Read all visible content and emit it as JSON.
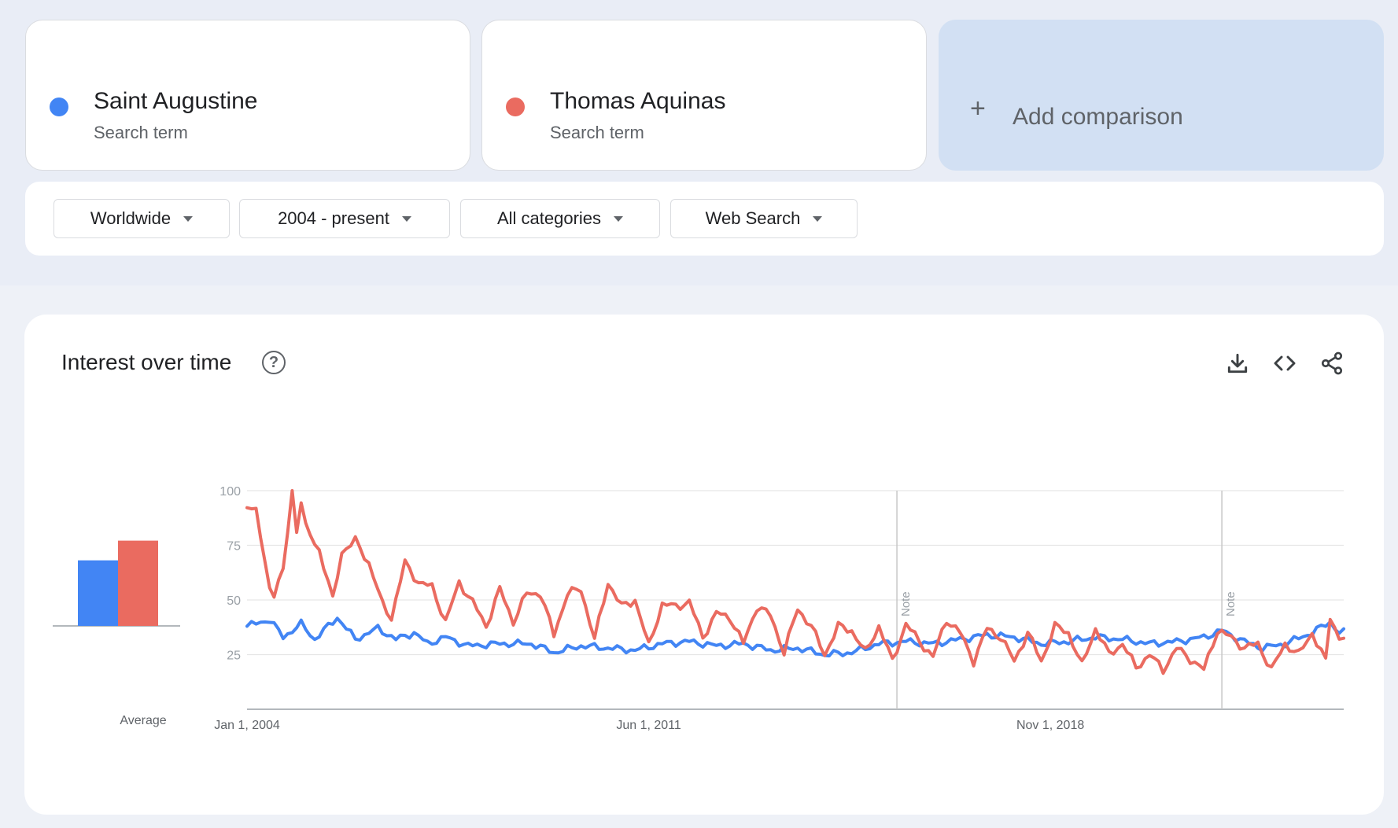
{
  "terms": [
    {
      "name": "Saint Augustine",
      "subtitle": "Search term",
      "color": "#4285f4"
    },
    {
      "name": "Thomas Aquinas",
      "subtitle": "Search term",
      "color": "#ea6b60"
    }
  ],
  "add_comparison": {
    "plus": "+",
    "label": "Add comparison"
  },
  "filters": {
    "region": "Worldwide",
    "time_range": "2004 - present",
    "category": "All categories",
    "search_type": "Web Search"
  },
  "chart_panel": {
    "title": "Interest over time",
    "help_icon": "?",
    "icons": [
      "download-icon",
      "embed-code-icon",
      "share-icon"
    ],
    "average_label": "Average"
  },
  "chart_data": {
    "type": "line",
    "title": "Interest over time",
    "ylim": [
      0,
      100
    ],
    "y_ticks": [
      25,
      50,
      75,
      100
    ],
    "x_ticks": [
      "Jan 1, 2004",
      "Jun 1, 2011",
      "Nov 1, 2018"
    ],
    "x_range": [
      "2004-01",
      "2024-03"
    ],
    "grid": true,
    "notes": [
      {
        "date": "2016-01",
        "label": "Note"
      },
      {
        "date": "2022-01",
        "label": "Note"
      }
    ],
    "average": [
      {
        "name": "Saint Augustine",
        "value": 30
      },
      {
        "name": "Thomas Aquinas",
        "value": 39
      }
    ],
    "series": [
      {
        "name": "Saint Augustine",
        "color": "#4285f4",
        "anchors": [
          [
            "2004-01",
            38
          ],
          [
            "2004-06",
            41
          ],
          [
            "2004-09",
            33
          ],
          [
            "2005-01",
            39
          ],
          [
            "2005-04",
            32
          ],
          [
            "2005-09",
            42
          ],
          [
            "2006-01",
            32
          ],
          [
            "2006-06",
            37
          ],
          [
            "2006-10",
            32
          ],
          [
            "2007-02",
            35
          ],
          [
            "2007-05",
            30
          ],
          [
            "2007-09",
            33
          ],
          [
            "2008-02",
            29
          ],
          [
            "2008-09",
            30
          ],
          [
            "2009-04",
            30
          ],
          [
            "2009-09",
            26
          ],
          [
            "2010-03",
            29
          ],
          [
            "2010-09",
            28
          ],
          [
            "2011-03",
            27
          ],
          [
            "2011-09",
            30
          ],
          [
            "2012-03",
            31
          ],
          [
            "2012-09",
            29
          ],
          [
            "2013-03",
            30
          ],
          [
            "2013-09",
            27
          ],
          [
            "2014-03",
            28
          ],
          [
            "2014-09",
            25
          ],
          [
            "2015-03",
            26
          ],
          [
            "2015-09",
            30
          ],
          [
            "2016-03",
            31
          ],
          [
            "2016-09",
            30
          ],
          [
            "2017-03",
            32
          ],
          [
            "2017-09",
            34
          ],
          [
            "2018-03",
            33
          ],
          [
            "2018-09",
            30
          ],
          [
            "2019-03",
            31
          ],
          [
            "2019-09",
            33
          ],
          [
            "2020-03",
            32
          ],
          [
            "2020-09",
            30
          ],
          [
            "2021-03",
            31
          ],
          [
            "2021-09",
            33
          ],
          [
            "2022-01",
            36
          ],
          [
            "2022-06",
            31
          ],
          [
            "2022-10",
            28
          ],
          [
            "2023-03",
            30
          ],
          [
            "2023-09",
            35
          ],
          [
            "2024-01",
            40
          ],
          [
            "2024-03",
            35
          ]
        ]
      },
      {
        "name": "Thomas Aquinas",
        "color": "#ea6b60",
        "anchors": [
          [
            "2004-01",
            94
          ],
          [
            "2004-03",
            90
          ],
          [
            "2004-06",
            56
          ],
          [
            "2004-07",
            53
          ],
          [
            "2004-09",
            63
          ],
          [
            "2004-11",
            100
          ],
          [
            "2004-12",
            82
          ],
          [
            "2005-01",
            95
          ],
          [
            "2005-02",
            83
          ],
          [
            "2005-05",
            73
          ],
          [
            "2005-08",
            50
          ],
          [
            "2005-10",
            72
          ],
          [
            "2006-01",
            77
          ],
          [
            "2006-04",
            67
          ],
          [
            "2006-07",
            48
          ],
          [
            "2006-09",
            42
          ],
          [
            "2006-12",
            67
          ],
          [
            "2007-03",
            58
          ],
          [
            "2007-06",
            56
          ],
          [
            "2007-09",
            40
          ],
          [
            "2007-12",
            58
          ],
          [
            "2008-03",
            49
          ],
          [
            "2008-06",
            38
          ],
          [
            "2008-09",
            55
          ],
          [
            "2008-12",
            40
          ],
          [
            "2009-03",
            53
          ],
          [
            "2009-06",
            53
          ],
          [
            "2009-09",
            34
          ],
          [
            "2009-12",
            53
          ],
          [
            "2010-03",
            55
          ],
          [
            "2010-06",
            32
          ],
          [
            "2010-09",
            58
          ],
          [
            "2010-12",
            47
          ],
          [
            "2011-03",
            50
          ],
          [
            "2011-06",
            29
          ],
          [
            "2011-09",
            48
          ],
          [
            "2011-12",
            47
          ],
          [
            "2012-03",
            49
          ],
          [
            "2012-06",
            33
          ],
          [
            "2012-09",
            44
          ],
          [
            "2012-12",
            42
          ],
          [
            "2013-03",
            30
          ],
          [
            "2013-06",
            47
          ],
          [
            "2013-09",
            43
          ],
          [
            "2013-12",
            26
          ],
          [
            "2014-03",
            46
          ],
          [
            "2014-06",
            38
          ],
          [
            "2014-09",
            25
          ],
          [
            "2014-12",
            38
          ],
          [
            "2015-03",
            36
          ],
          [
            "2015-06",
            26
          ],
          [
            "2015-09",
            38
          ],
          [
            "2015-12",
            22
          ],
          [
            "2016-03",
            39
          ],
          [
            "2016-06",
            31
          ],
          [
            "2016-09",
            24
          ],
          [
            "2016-12",
            41
          ],
          [
            "2017-03",
            35
          ],
          [
            "2017-06",
            22
          ],
          [
            "2017-09",
            37
          ],
          [
            "2017-12",
            33
          ],
          [
            "2018-03",
            22
          ],
          [
            "2018-06",
            35
          ],
          [
            "2018-09",
            22
          ],
          [
            "2018-12",
            38
          ],
          [
            "2019-03",
            35
          ],
          [
            "2019-06",
            20
          ],
          [
            "2019-09",
            37
          ],
          [
            "2019-12",
            25
          ],
          [
            "2020-03",
            30
          ],
          [
            "2020-06",
            19
          ],
          [
            "2020-09",
            25
          ],
          [
            "2020-12",
            18
          ],
          [
            "2021-03",
            28
          ],
          [
            "2021-06",
            23
          ],
          [
            "2021-09",
            18
          ],
          [
            "2021-12",
            36
          ],
          [
            "2022-03",
            33
          ],
          [
            "2022-06",
            28
          ],
          [
            "2022-09",
            30
          ],
          [
            "2022-12",
            18
          ],
          [
            "2023-03",
            30
          ],
          [
            "2023-06",
            25
          ],
          [
            "2023-09",
            35
          ],
          [
            "2023-12",
            22
          ],
          [
            "2024-01",
            42
          ],
          [
            "2024-03",
            33
          ]
        ]
      }
    ]
  }
}
